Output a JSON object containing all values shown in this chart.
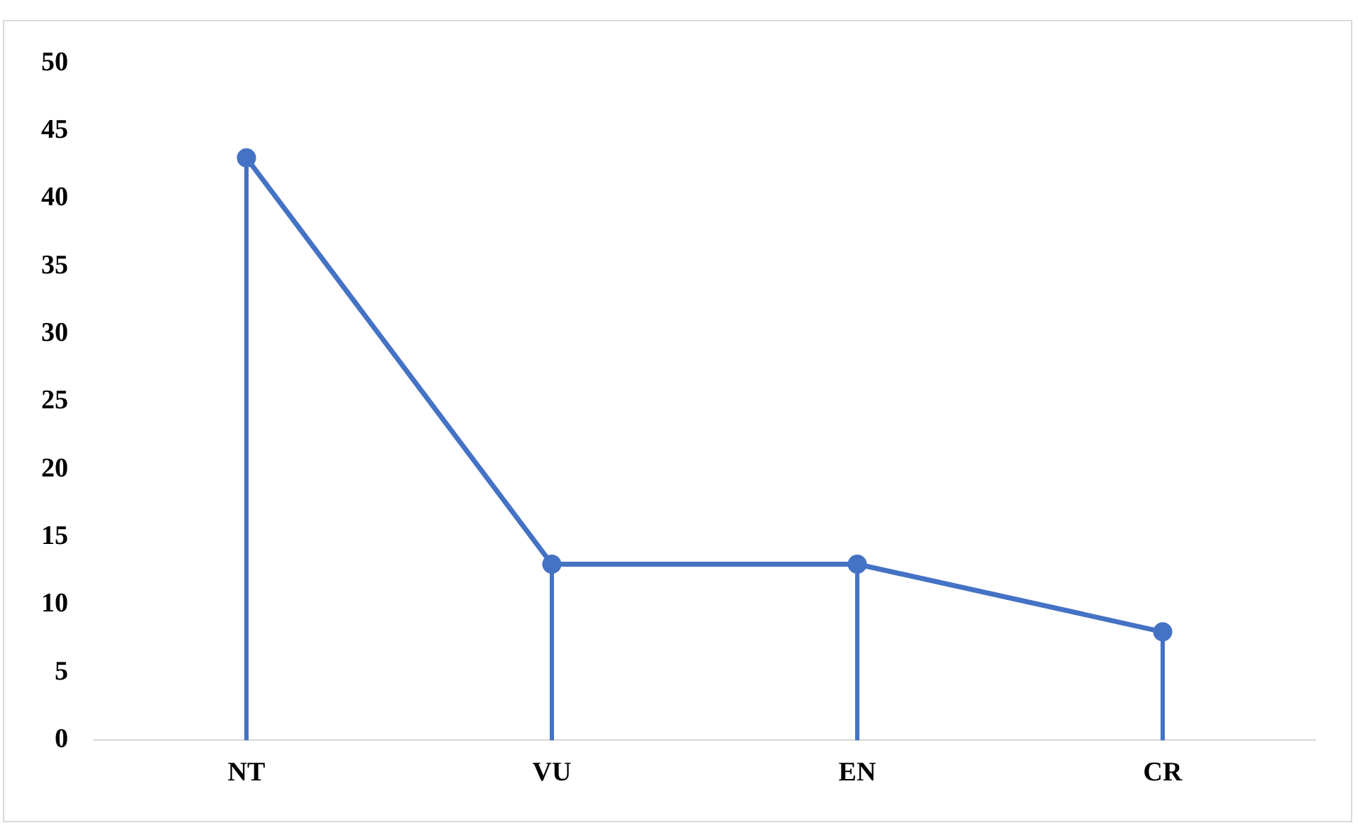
{
  "chart_data": {
    "type": "lollipop",
    "categories": [
      "NT",
      "VU",
      "EN",
      "CR"
    ],
    "series": [
      {
        "color": "#4472c4",
        "values": [
          43,
          13,
          13,
          8
        ]
      },
      {
        "type": "line",
        "color": "#4472c4",
        "values": [
          43,
          13,
          13,
          8
        ]
      }
    ],
    "ylim": [
      0,
      50
    ],
    "yticks": [
      0,
      5,
      10,
      15,
      20,
      25,
      30,
      35,
      40,
      45,
      50
    ],
    "grid": false,
    "legend": false,
    "marker": "circle",
    "line_style": "solid"
  }
}
